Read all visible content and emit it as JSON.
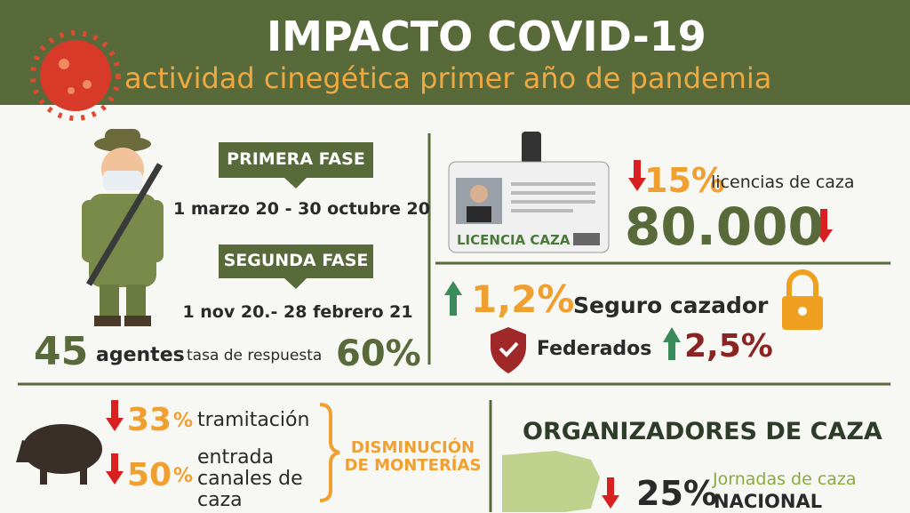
{
  "header": {
    "title": "IMPACTO COVID-19",
    "subtitle": "actividad cinegética primer año de pandemia"
  },
  "phases": [
    {
      "label": "PRIMERA FASE",
      "dates": "1 marzo 20 - 30 octubre 20"
    },
    {
      "label": "SEGUNDA FASE",
      "dates": "1 nov 20.- 28 febrero 21"
    }
  ],
  "agents": {
    "count": "45",
    "label": "agentes",
    "rate_label": "tasa de respuesta",
    "rate": "60%"
  },
  "licences": {
    "card_label": "LICENCIA CAZA",
    "change": "15%",
    "change_label": "licencias de caza",
    "total": "80.000"
  },
  "insurance": {
    "change": "1,2%",
    "label": "Seguro cazador"
  },
  "federated": {
    "label": "Federados",
    "change": "2,5%"
  },
  "hunts": {
    "items": [
      {
        "value": "33",
        "unit": "%",
        "label": "tramitación"
      },
      {
        "value": "50",
        "unit": "%",
        "label": "entrada canales de caza"
      }
    ],
    "summary": "DISMINUCIÓN DE MONTERÍAS"
  },
  "organizers": {
    "title": "ORGANIZADORES DE CAZA",
    "value": "25%",
    "label": "Jornadas de caza",
    "scope": "NACIONAL"
  }
}
